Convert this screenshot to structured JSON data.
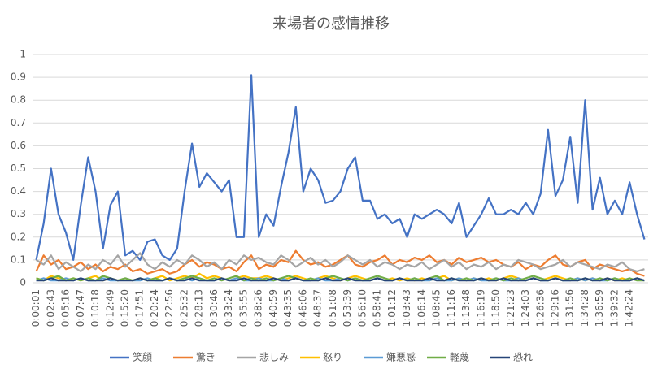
{
  "chart_data": {
    "type": "line",
    "title": "来場者の感情推移",
    "categories": [
      "0:00:01",
      null,
      "0:02:43",
      null,
      "0:05:16",
      null,
      "0:07:47",
      null,
      "0:10:18",
      null,
      "0:12:49",
      null,
      "0:15:20",
      null,
      "0:17:51",
      null,
      "0:20:24",
      null,
      "0:22:56",
      null,
      "0:25:32",
      null,
      "0:28:13",
      null,
      "0:30:46",
      null,
      "0:33:24",
      null,
      "0:35:55",
      null,
      "0:38:26",
      null,
      "0:40:59",
      null,
      "0:43:35",
      null,
      "0:46:06",
      null,
      "0:48:37",
      null,
      "0:51:08",
      null,
      "0:53:39",
      null,
      "0:56:10",
      null,
      "0:58:41",
      null,
      "1:01:12",
      null,
      "1:03:43",
      null,
      "1:06:14",
      null,
      "1:08:45",
      null,
      "1:11:16",
      null,
      "1:13:48",
      null,
      "1:16:19",
      null,
      "1:18:50",
      null,
      "1:21:23",
      null,
      "1:24:03",
      null,
      "1:26:36",
      null,
      "1:29:16",
      null,
      "1:31:56",
      null,
      "1:34:28",
      null,
      "1:36:59",
      null,
      "1:39:32",
      null,
      "1:42:24",
      null,
      null
    ],
    "series": [
      {
        "name": "笑顔",
        "color": "#4472c4",
        "values": [
          0.1,
          0.26,
          0.5,
          0.3,
          0.22,
          0.1,
          0.34,
          0.55,
          0.4,
          0.15,
          0.34,
          0.4,
          0.12,
          0.14,
          0.1,
          0.18,
          0.19,
          0.12,
          0.1,
          0.15,
          0.4,
          0.61,
          0.42,
          0.48,
          0.44,
          0.4,
          0.45,
          0.2,
          0.2,
          0.91,
          0.2,
          0.3,
          0.25,
          0.42,
          0.57,
          0.77,
          0.4,
          0.5,
          0.45,
          0.35,
          0.36,
          0.4,
          0.5,
          0.55,
          0.36,
          0.36,
          0.28,
          0.3,
          0.26,
          0.28,
          0.2,
          0.3,
          0.28,
          0.3,
          0.32,
          0.3,
          0.26,
          0.35,
          0.2,
          0.25,
          0.3,
          0.37,
          0.3,
          0.3,
          0.32,
          0.3,
          0.35,
          0.3,
          0.39,
          0.67,
          0.38,
          0.45,
          0.64,
          0.35,
          0.8,
          0.32,
          0.46,
          0.3,
          0.36,
          0.3,
          0.44,
          0.3,
          0.19
        ]
      },
      {
        "name": "驚き",
        "color": "#ed7d31",
        "values": [
          0.05,
          0.12,
          0.08,
          0.1,
          0.06,
          0.07,
          0.09,
          0.06,
          0.08,
          0.05,
          0.07,
          0.06,
          0.08,
          0.05,
          0.06,
          0.04,
          0.05,
          0.06,
          0.04,
          0.05,
          0.08,
          0.1,
          0.07,
          0.09,
          0.08,
          0.06,
          0.07,
          0.05,
          0.09,
          0.12,
          0.06,
          0.08,
          0.07,
          0.1,
          0.09,
          0.14,
          0.1,
          0.08,
          0.09,
          0.07,
          0.08,
          0.1,
          0.12,
          0.08,
          0.07,
          0.09,
          0.1,
          0.12,
          0.08,
          0.1,
          0.09,
          0.11,
          0.1,
          0.12,
          0.09,
          0.1,
          0.08,
          0.11,
          0.09,
          0.1,
          0.11,
          0.09,
          0.1,
          0.08,
          0.07,
          0.09,
          0.06,
          0.08,
          0.07,
          0.1,
          0.12,
          0.08,
          0.07,
          0.09,
          0.1,
          0.06,
          0.08,
          0.07,
          0.06,
          0.05,
          0.06,
          0.04,
          0.03
        ]
      },
      {
        "name": "悲しみ",
        "color": "#a5a5a5",
        "values": [
          0.1,
          0.08,
          0.12,
          0.06,
          0.09,
          0.07,
          0.05,
          0.08,
          0.06,
          0.1,
          0.08,
          0.12,
          0.07,
          0.1,
          0.13,
          0.08,
          0.06,
          0.09,
          0.07,
          0.1,
          0.08,
          0.12,
          0.1,
          0.07,
          0.09,
          0.06,
          0.1,
          0.08,
          0.12,
          0.1,
          0.11,
          0.09,
          0.08,
          0.12,
          0.1,
          0.07,
          0.09,
          0.11,
          0.08,
          0.1,
          0.07,
          0.09,
          0.12,
          0.1,
          0.08,
          0.1,
          0.07,
          0.09,
          0.08,
          0.06,
          0.08,
          0.07,
          0.09,
          0.06,
          0.08,
          0.1,
          0.07,
          0.09,
          0.06,
          0.08,
          0.07,
          0.09,
          0.06,
          0.08,
          0.07,
          0.1,
          0.09,
          0.08,
          0.06,
          0.07,
          0.08,
          0.1,
          0.07,
          0.09,
          0.08,
          0.07,
          0.06,
          0.08,
          0.07,
          0.09,
          0.06,
          0.05,
          0.06
        ]
      },
      {
        "name": "怒り",
        "color": "#ffc000",
        "values": [
          0.02,
          0.01,
          0.03,
          0.02,
          0.01,
          0.02,
          0.01,
          0.02,
          0.03,
          0.01,
          0.02,
          0.01,
          0.02,
          0.01,
          0.02,
          0.01,
          0.02,
          0.03,
          0.01,
          0.02,
          0.03,
          0.02,
          0.04,
          0.02,
          0.03,
          0.02,
          0.01,
          0.02,
          0.03,
          0.02,
          0.02,
          0.03,
          0.02,
          0.01,
          0.02,
          0.03,
          0.02,
          0.01,
          0.02,
          0.03,
          0.02,
          0.01,
          0.02,
          0.03,
          0.02,
          0.01,
          0.02,
          0.01,
          0.02,
          0.01,
          0.02,
          0.01,
          0.02,
          0.01,
          0.02,
          0.03,
          0.01,
          0.02,
          0.01,
          0.02,
          0.01,
          0.02,
          0.01,
          0.02,
          0.03,
          0.02,
          0.01,
          0.02,
          0.01,
          0.02,
          0.03,
          0.02,
          0.01,
          0.02,
          0.01,
          0.02,
          0.01,
          0.02,
          0.01,
          0.02,
          0.01,
          0.02,
          0.01
        ]
      },
      {
        "name": "嫌悪感",
        "color": "#5b9bd5",
        "values": [
          0.01,
          0.02,
          0.01,
          0.01,
          0.02,
          0.01,
          0.02,
          0.01,
          0.01,
          0.02,
          0.01,
          0.01,
          0.02,
          0.01,
          0.01,
          0.02,
          0.01,
          0.01,
          0.02,
          0.01,
          0.02,
          0.01,
          0.02,
          0.01,
          0.01,
          0.02,
          0.01,
          0.02,
          0.01,
          0.01,
          0.02,
          0.01,
          0.01,
          0.02,
          0.01,
          0.02,
          0.01,
          0.01,
          0.02,
          0.01,
          0.01,
          0.02,
          0.01,
          0.02,
          0.01,
          0.01,
          0.02,
          0.01,
          0.01,
          0.02,
          0.01,
          0.02,
          0.01,
          0.01,
          0.02,
          0.01,
          0.01,
          0.02,
          0.01,
          0.02,
          0.01,
          0.01,
          0.02,
          0.01,
          0.01,
          0.02,
          0.01,
          0.02,
          0.01,
          0.01,
          0.02,
          0.01,
          0.01,
          0.02,
          0.01,
          0.02,
          0.01,
          0.01,
          0.02,
          0.01,
          0.01,
          0.02,
          0.01
        ]
      },
      {
        "name": "軽蔑",
        "color": "#70ad47",
        "values": [
          0.02,
          0.01,
          0.02,
          0.03,
          0.01,
          0.02,
          0.01,
          0.02,
          0.01,
          0.03,
          0.02,
          0.01,
          0.02,
          0.01,
          0.02,
          0.01,
          0.02,
          0.01,
          0.02,
          0.01,
          0.02,
          0.03,
          0.02,
          0.01,
          0.02,
          0.01,
          0.02,
          0.03,
          0.01,
          0.02,
          0.01,
          0.02,
          0.01,
          0.02,
          0.03,
          0.02,
          0.01,
          0.02,
          0.01,
          0.02,
          0.03,
          0.02,
          0.01,
          0.02,
          0.01,
          0.02,
          0.03,
          0.02,
          0.01,
          0.02,
          0.01,
          0.02,
          0.01,
          0.02,
          0.03,
          0.01,
          0.02,
          0.01,
          0.02,
          0.01,
          0.02,
          0.01,
          0.02,
          0.01,
          0.02,
          0.01,
          0.02,
          0.03,
          0.02,
          0.01,
          0.02,
          0.01,
          0.02,
          0.01,
          0.02,
          0.01,
          0.02,
          0.01,
          0.02,
          0.01,
          0.02,
          0.01,
          0.01
        ]
      },
      {
        "name": "恐れ",
        "color": "#264478",
        "values": [
          0.01,
          0.01,
          0.02,
          0.01,
          0.01,
          0.01,
          0.02,
          0.01,
          0.01,
          0.01,
          0.02,
          0.01,
          0.01,
          0.01,
          0.02,
          0.01,
          0.01,
          0.01,
          0.02,
          0.01,
          0.01,
          0.02,
          0.01,
          0.01,
          0.01,
          0.02,
          0.01,
          0.01,
          0.02,
          0.01,
          0.01,
          0.01,
          0.02,
          0.01,
          0.01,
          0.02,
          0.01,
          0.01,
          0.01,
          0.02,
          0.01,
          0.01,
          0.02,
          0.01,
          0.01,
          0.01,
          0.02,
          0.01,
          0.01,
          0.02,
          0.01,
          0.01,
          0.01,
          0.02,
          0.01,
          0.01,
          0.02,
          0.01,
          0.01,
          0.01,
          0.02,
          0.01,
          0.01,
          0.02,
          0.01,
          0.01,
          0.01,
          0.02,
          0.01,
          0.01,
          0.02,
          0.01,
          0.01,
          0.01,
          0.02,
          0.01,
          0.01,
          0.02,
          0.01,
          0.01,
          0.01,
          0.02,
          0.01
        ]
      }
    ],
    "ylim": [
      0,
      1
    ],
    "yticks": [
      0,
      0.1,
      0.2,
      0.3,
      0.4,
      0.5,
      0.6,
      0.7,
      0.8,
      0.9,
      1
    ],
    "grid": true,
    "legend": "bottom"
  }
}
